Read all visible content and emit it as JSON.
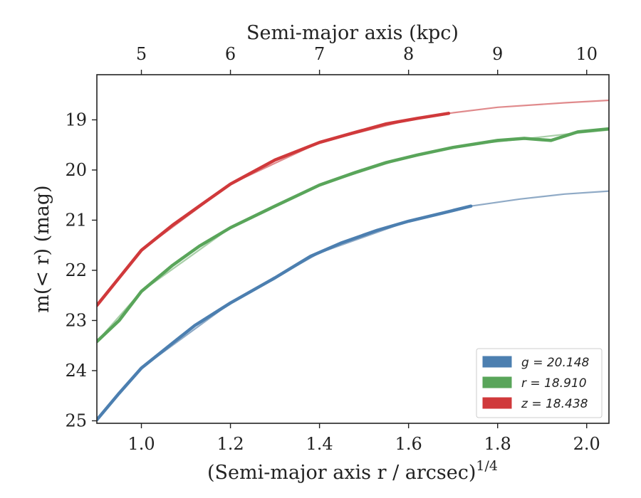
{
  "chart_data": {
    "type": "line",
    "xlabel": "(Semi-major axis r / arcsec)",
    "xlabel_sup": "1/4",
    "ylabel": "m(< r) (mag)",
    "top_xlabel": "Semi-major axis (kpc)",
    "xlim": [
      0.9,
      2.05
    ],
    "ylim": [
      25.05,
      18.1
    ],
    "x_ticks": [
      "1.0",
      "1.2",
      "1.4",
      "1.6",
      "1.8",
      "2.0"
    ],
    "x_tick_values": [
      1.0,
      1.2,
      1.4,
      1.6,
      1.8,
      2.0
    ],
    "y_ticks": [
      "19",
      "20",
      "21",
      "22",
      "23",
      "24",
      "25"
    ],
    "y_tick_values": [
      19,
      20,
      21,
      22,
      23,
      24,
      25
    ],
    "top_ticks": [
      "5",
      "6",
      "7",
      "8",
      "9",
      "10"
    ],
    "top_tick_positions": [
      1.0,
      1.2,
      1.4,
      1.6,
      1.8,
      2.0
    ],
    "legend_position": "lower-right",
    "series": [
      {
        "name": "g = 20.148",
        "color": "#4c7fb0",
        "fit_color": "#8faac6",
        "data": [
          [
            0.9,
            24.98
          ],
          [
            0.95,
            24.45
          ],
          [
            1.0,
            23.95
          ],
          [
            1.07,
            23.45
          ],
          [
            1.12,
            23.1
          ],
          [
            1.2,
            22.65
          ],
          [
            1.3,
            22.15
          ],
          [
            1.38,
            21.72
          ],
          [
            1.45,
            21.45
          ],
          [
            1.53,
            21.2
          ],
          [
            1.6,
            21.02
          ],
          [
            1.68,
            20.85
          ],
          [
            1.74,
            20.72
          ]
        ],
        "fit": [
          [
            0.9,
            24.98
          ],
          [
            1.0,
            23.95
          ],
          [
            1.2,
            22.65
          ],
          [
            1.4,
            21.65
          ],
          [
            1.6,
            21.02
          ],
          [
            1.74,
            20.72
          ],
          [
            1.85,
            20.58
          ],
          [
            1.95,
            20.48
          ],
          [
            2.05,
            20.42
          ]
        ]
      },
      {
        "name": "r = 18.910",
        "color": "#59a55a",
        "fit_color": "#a8cfa8",
        "data": [
          [
            0.9,
            23.42
          ],
          [
            0.95,
            23.0
          ],
          [
            1.0,
            22.42
          ],
          [
            1.07,
            21.9
          ],
          [
            1.13,
            21.52
          ],
          [
            1.2,
            21.15
          ],
          [
            1.3,
            20.72
          ],
          [
            1.4,
            20.3
          ],
          [
            1.48,
            20.05
          ],
          [
            1.55,
            19.85
          ],
          [
            1.62,
            19.7
          ],
          [
            1.7,
            19.55
          ],
          [
            1.8,
            19.41
          ],
          [
            1.86,
            19.37
          ],
          [
            1.92,
            19.41
          ],
          [
            1.98,
            19.24
          ],
          [
            2.05,
            19.18
          ]
        ],
        "fit": [
          [
            0.9,
            23.42
          ],
          [
            1.0,
            22.42
          ],
          [
            1.2,
            21.15
          ],
          [
            1.4,
            20.3
          ],
          [
            1.6,
            19.73
          ],
          [
            1.75,
            19.48
          ],
          [
            1.88,
            19.36
          ],
          [
            1.97,
            19.27
          ],
          [
            2.05,
            19.2
          ]
        ]
      },
      {
        "name": "z = 18.438",
        "color": "#d0393b",
        "fit_color": "#e08a8c",
        "data": [
          [
            0.9,
            22.7
          ],
          [
            0.95,
            22.15
          ],
          [
            1.0,
            21.6
          ],
          [
            1.07,
            21.1
          ],
          [
            1.13,
            20.72
          ],
          [
            1.2,
            20.28
          ],
          [
            1.3,
            19.8
          ],
          [
            1.4,
            19.45
          ],
          [
            1.48,
            19.25
          ],
          [
            1.55,
            19.08
          ],
          [
            1.62,
            18.97
          ],
          [
            1.69,
            18.87
          ]
        ],
        "fit": [
          [
            0.9,
            22.7
          ],
          [
            1.0,
            21.6
          ],
          [
            1.2,
            20.28
          ],
          [
            1.4,
            19.45
          ],
          [
            1.6,
            19.0
          ],
          [
            1.69,
            18.87
          ],
          [
            1.8,
            18.75
          ],
          [
            1.95,
            18.66
          ],
          [
            2.05,
            18.61
          ]
        ]
      }
    ]
  }
}
